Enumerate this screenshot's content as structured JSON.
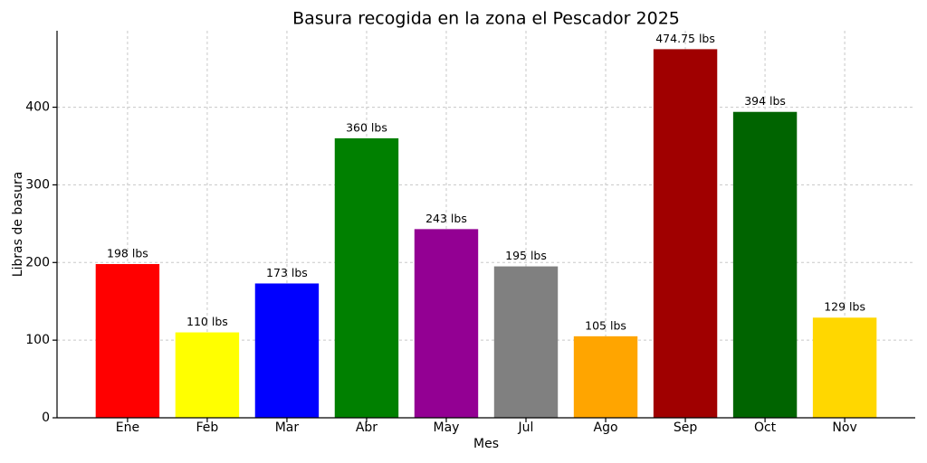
{
  "chart_data": {
    "type": "bar",
    "title": "Basura recogida en la zona el Pescador 2025",
    "x_label": "Mes",
    "y_label": "Libras de basura",
    "categories": [
      "Ene",
      "Feb",
      "Mar",
      "Abr",
      "May",
      "Jul",
      "Ago",
      "Sep",
      "Oct",
      "Nov"
    ],
    "values": [
      198,
      110,
      173,
      360,
      243,
      195,
      105,
      474.75,
      394,
      129
    ],
    "value_labels": [
      "198 lbs",
      "110 lbs",
      "173 lbs",
      "360 lbs",
      "243 lbs",
      "195 lbs",
      "105 lbs",
      "474.75 lbs",
      "394 lbs",
      "129 lbs"
    ],
    "colors": [
      "#ff0000",
      "#ffff00",
      "#0000ff",
      "#008000",
      "#930093",
      "#808080",
      "#ffa500",
      "#a00000",
      "#006400",
      "#ffd700"
    ],
    "ylim": [
      0,
      498.5
    ],
    "yticks": [
      0,
      100,
      200,
      300,
      400
    ],
    "grid": true
  }
}
